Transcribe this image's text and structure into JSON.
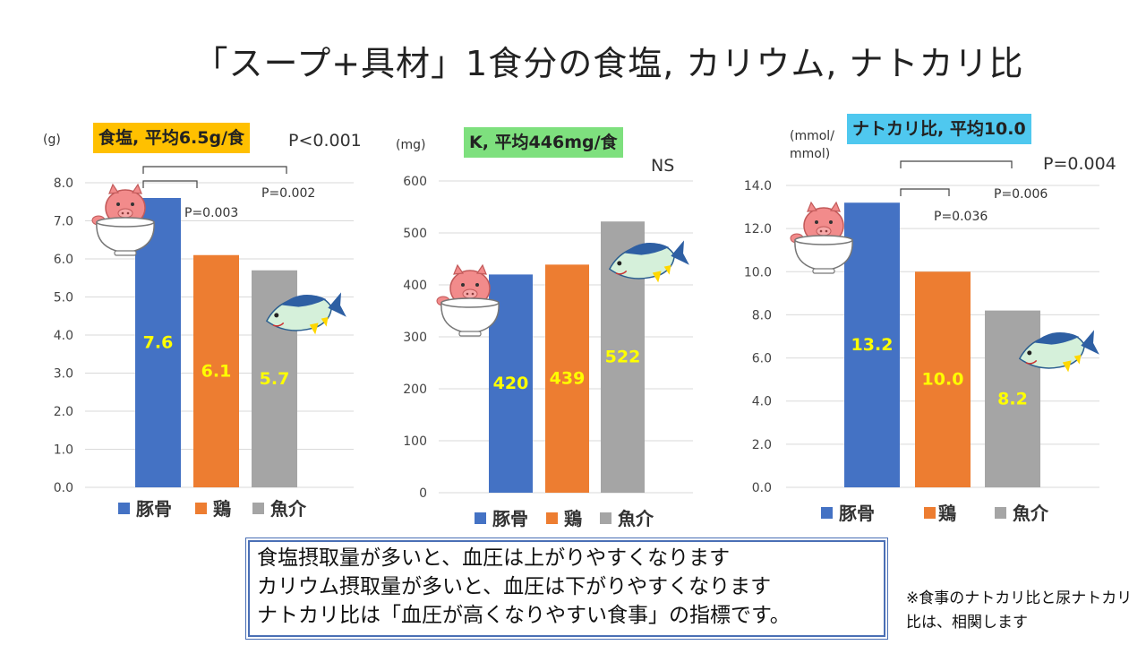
{
  "title": "「スープ+具材」1食分の食塩, カリウム, ナトカリ比",
  "colors": {
    "tonkotsu": "#4472c4",
    "tori": "#ed7d31",
    "gyokai": "#a5a5a5",
    "datalabel": "#ffff00"
  },
  "icons": [
    "pig-in-bowl-icon",
    "fish-icon"
  ],
  "chart_data": [
    {
      "type": "bar",
      "unit": "(g)",
      "badge": "食塩, 平均6.5g/食",
      "badge_color": "#ffc000",
      "main_p": "P<0.001",
      "categories": [
        "豚骨",
        "鶏",
        "魚介"
      ],
      "values": [
        7.6,
        6.1,
        5.7
      ],
      "value_labels": [
        "7.6",
        "6.1",
        "5.7"
      ],
      "ylim": [
        0,
        8
      ],
      "yticks": [
        "0.0",
        "1.0",
        "2.0",
        "3.0",
        "4.0",
        "5.0",
        "6.0",
        "7.0",
        "8.0"
      ],
      "comparisons": [
        {
          "label": "P=0.003",
          "from": 0,
          "to": 1
        },
        {
          "label": "P=0.002",
          "from": 0,
          "to": 2
        }
      ],
      "legend": [
        "豚骨",
        "鶏",
        "魚介"
      ]
    },
    {
      "type": "bar",
      "unit": "(mg)",
      "badge": "K, 平均446mg/食",
      "badge_color": "#7ee07e",
      "main_p": "NS",
      "categories": [
        "豚骨",
        "鶏",
        "魚介"
      ],
      "values": [
        420,
        439,
        522
      ],
      "value_labels": [
        "420",
        "439",
        "522"
      ],
      "ylim": [
        0,
        600
      ],
      "yticks": [
        "0",
        "100",
        "200",
        "300",
        "400",
        "500",
        "600"
      ],
      "comparisons": [],
      "legend": [
        "豚骨",
        "鶏",
        "魚介"
      ]
    },
    {
      "type": "bar",
      "unit": "(mmol/\nmmol)",
      "badge": "ナトカリ比, 平均10.0",
      "badge_color": "#4fc8ef",
      "main_p": "P=0.004",
      "categories": [
        "豚骨",
        "鶏",
        "魚介"
      ],
      "values": [
        13.2,
        10.0,
        8.2
      ],
      "value_labels": [
        "13.2",
        "10.0",
        "8.2"
      ],
      "ylim": [
        0,
        14
      ],
      "yticks": [
        "0.0",
        "2.0",
        "4.0",
        "6.0",
        "8.0",
        "10.0",
        "12.0",
        "14.0"
      ],
      "comparisons": [
        {
          "label": "P=0.036",
          "from": 0,
          "to": 1
        },
        {
          "label": "P=0.006",
          "from": 0,
          "to": 2
        }
      ],
      "legend": [
        "豚骨",
        "鶏",
        "魚介"
      ]
    }
  ],
  "notes": {
    "lines": [
      "食塩摂取量が多いと、血圧は上がりやすくなります",
      "カリウム摂取量が多いと、血圧は下がりやすくなります",
      "ナトカリ比は「血圧が高くなりやすい食事」の指標です。"
    ],
    "side": "※食事のナトカリ比と尿ナトカリ比は、相関します"
  }
}
